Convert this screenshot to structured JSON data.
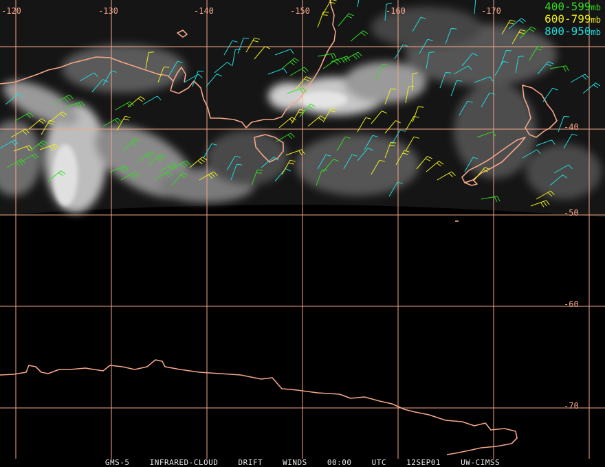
{
  "map": {
    "longitude_labels": [
      "-120",
      "-130",
      "-140",
      "-150",
      "-160",
      "-170"
    ],
    "latitude_labels": [
      "-40",
      "-50",
      "-60",
      "-70"
    ],
    "legend": [
      {
        "range": "400-599",
        "unit": "mb",
        "color": "#33dd22"
      },
      {
        "range": "600-799",
        "unit": "mb",
        "color": "#f0f020"
      },
      {
        "range": "800-950",
        "unit": "mb",
        "color": "#22dddd"
      }
    ],
    "caption": [
      "GMS-5 INFRARED-CLOUD DRIFT WINDS",
      "00:00 UTC",
      "12SEP01",
      "UW-CIMSS"
    ],
    "colors": {
      "grid": "#f4a789",
      "coast": "#f4a789",
      "background": "#000000"
    }
  }
}
